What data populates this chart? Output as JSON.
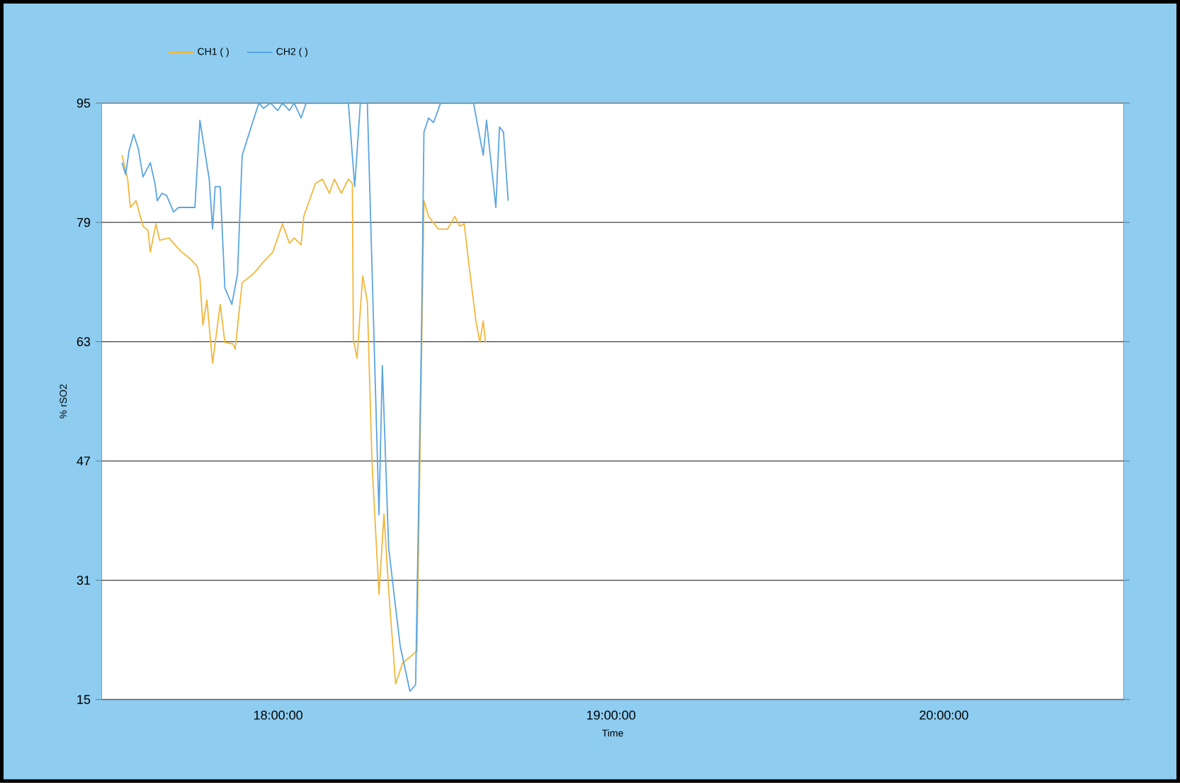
{
  "chart_data": {
    "type": "line",
    "xlabel": "Time",
    "ylabel": "% rSO2",
    "xlim": [
      17.47,
      20.54
    ],
    "ylim": [
      15,
      95
    ],
    "xticks": [
      {
        "value": 18,
        "label": "18:00:00"
      },
      {
        "value": 19,
        "label": "19:00:00"
      },
      {
        "value": 20,
        "label": "20:00:00"
      }
    ],
    "yticks": [
      15,
      31,
      47,
      63,
      79,
      95
    ],
    "grid": "y",
    "legend": "top",
    "line_style": "solid",
    "series": [
      {
        "name": "CH1 ( )",
        "color": "#f0b83c",
        "x": [
          17.531,
          17.548,
          17.556,
          17.573,
          17.594,
          17.609,
          17.616,
          17.633,
          17.644,
          17.672,
          17.706,
          17.736,
          17.757,
          17.765,
          17.774,
          17.786,
          17.803,
          17.826,
          17.84,
          17.864,
          17.871,
          17.892,
          17.928,
          17.956,
          17.984,
          18.013,
          18.034,
          18.048,
          18.069,
          18.077,
          18.112,
          18.133,
          18.154,
          18.169,
          18.19,
          18.211,
          18.223,
          18.226,
          18.237,
          18.254,
          18.268,
          18.282,
          18.303,
          18.318,
          18.332,
          18.353,
          18.374,
          18.417,
          18.438,
          18.452,
          18.481,
          18.509,
          18.531,
          18.545,
          18.559,
          18.573,
          18.594,
          18.606,
          18.616,
          18.623
        ],
        "values": [
          88.0,
          84.8,
          81.0,
          81.9,
          78.5,
          77.9,
          75.0,
          78.8,
          76.6,
          76.9,
          75.2,
          74.1,
          73.1,
          71.5,
          65.2,
          68.6,
          60.1,
          68.0,
          62.9,
          62.7,
          62.0,
          70.9,
          72.2,
          73.7,
          75.0,
          78.8,
          76.2,
          76.9,
          76.0,
          79.8,
          84.2,
          84.8,
          82.9,
          84.8,
          82.9,
          84.8,
          84.2,
          63.3,
          60.8,
          71.8,
          68.4,
          46.8,
          29.1,
          39.9,
          29.7,
          17.1,
          19.9,
          21.5,
          81.9,
          79.8,
          78.1,
          78.1,
          79.8,
          78.5,
          78.8,
          73.4,
          65.8,
          62.9,
          65.8,
          62.9
        ]
      },
      {
        "name": "CH2 ( )",
        "color": "#5aa5e0",
        "x": [
          17.531,
          17.542,
          17.552,
          17.566,
          17.58,
          17.594,
          17.616,
          17.63,
          17.637,
          17.651,
          17.665,
          17.686,
          17.701,
          17.715,
          17.75,
          17.765,
          17.793,
          17.803,
          17.811,
          17.826,
          17.84,
          17.861,
          17.878,
          17.892,
          17.914,
          17.942,
          17.956,
          17.977,
          17.999,
          18.013,
          18.034,
          18.048,
          18.069,
          18.084,
          18.211,
          18.23,
          18.247,
          18.268,
          18.303,
          18.313,
          18.332,
          18.353,
          18.367,
          18.396,
          18.413,
          18.431,
          18.438,
          18.452,
          18.467,
          18.488,
          18.587,
          18.616,
          18.626,
          18.654,
          18.665,
          18.677,
          18.691
        ],
        "values": [
          87.0,
          85.4,
          88.6,
          90.8,
          88.9,
          85.1,
          87.0,
          84.2,
          81.9,
          82.9,
          82.6,
          80.4,
          81.0,
          81.0,
          81.0,
          92.7,
          84.8,
          78.1,
          83.8,
          83.8,
          70.2,
          68.0,
          72.1,
          88.0,
          91.1,
          95,
          94.3,
          95,
          94.0,
          95,
          94.0,
          95,
          93.0,
          95,
          95,
          83.8,
          95,
          95,
          39.8,
          59.8,
          35.4,
          27.3,
          22.1,
          16.1,
          17.0,
          65.2,
          91.1,
          93.0,
          92.4,
          95,
          95,
          88.0,
          92.7,
          81.0,
          91.8,
          91.1,
          81.9
        ]
      }
    ]
  }
}
